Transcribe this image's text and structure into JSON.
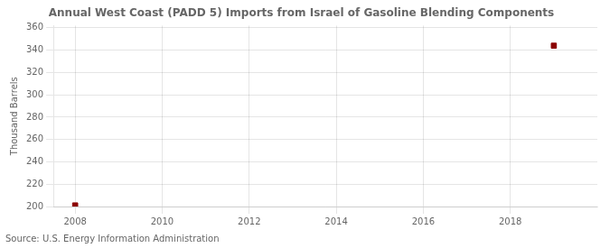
{
  "chart_data": {
    "type": "scatter",
    "title": "Annual West Coast (PADD 5) Imports from Israel of Gasoline Blending Components",
    "ylabel": "Thousand Barrels",
    "annotation": "Source: U.S. Energy Information Administration",
    "x": [
      2008,
      2019
    ],
    "values": [
      201,
      344
    ],
    "color": "#8b0000",
    "marker": "square",
    "xlim": [
      2007.5,
      2020.0
    ],
    "ylim": [
      200,
      362
    ],
    "xticks": [
      2008,
      2010,
      2012,
      2014,
      2016,
      2018
    ],
    "yticks": [
      200,
      220,
      240,
      260,
      280,
      300,
      320,
      340,
      360
    ],
    "grid": true
  }
}
